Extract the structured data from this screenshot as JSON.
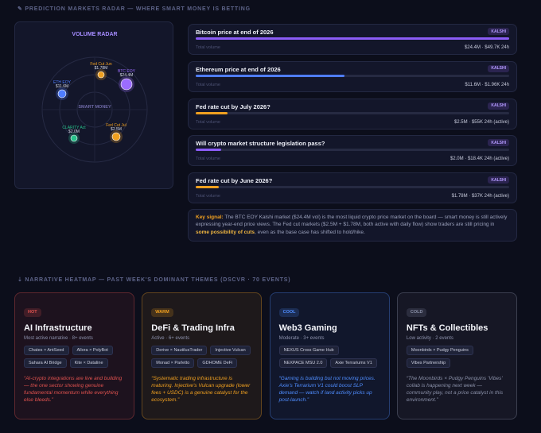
{
  "radar": {
    "title": "PREDICTION MARKETS RADAR — WHERE SMART MONEY IS BETTING",
    "panel_title": "VOLUME RADAR",
    "center": "SMART MONEY",
    "nodes": [
      {
        "label": "Fed Cut Jun",
        "value": "$1.78M",
        "color": "#f0a020"
      },
      {
        "label": "BTC EOY",
        "value": "$24.4M",
        "color": "#9b6cff"
      },
      {
        "label": "ETH EOY",
        "value": "$11.6M",
        "color": "#4f7dff"
      },
      {
        "label": "CLARITY Act",
        "value": "$2.0M",
        "color": "#27c28a"
      },
      {
        "label": "Fed Cut Jul",
        "value": "$2.5M",
        "color": "#f0a020"
      }
    ]
  },
  "markets": [
    {
      "question": "Bitcoin price at end of 2026",
      "source": "KALSHI",
      "volume_label": "Total volume",
      "volume_musd": 24.4,
      "stats": "$24.4M · $49.7K 24h",
      "color": "#8b5cf6"
    },
    {
      "question": "Ethereum price at end of 2026",
      "source": "KALSHI",
      "volume_label": "Total volume",
      "volume_musd": 11.6,
      "stats": "$11.6M · $1.96K 24h",
      "color": "#4f7dff"
    },
    {
      "question": "Fed rate cut by July 2026?",
      "source": "KALSHI",
      "volume_label": "Total volume",
      "volume_musd": 2.5,
      "stats": "$2.5M · $55K 24h (active)",
      "color": "#f0a020"
    },
    {
      "question": "Will crypto market structure legislation pass?",
      "source": "KALSHI",
      "volume_label": "Total volume",
      "volume_musd": 2.0,
      "stats": "$2.0M · $18.4K 24h (active)",
      "color": "#8b5cf6"
    },
    {
      "question": "Fed rate cut by June 2026?",
      "source": "KALSHI",
      "volume_label": "Total volume",
      "volume_musd": 1.78,
      "stats": "$1.78M · $37K 24h (active)",
      "color": "#f0a020"
    }
  ],
  "key_signal": {
    "label": "Key signal:",
    "text_1": " The BTC EOY Kalshi market ($24.4M vol) is the most liquid crypto price market on the board — smart money is still actively expressing year-end price views. The Fed cut markets ($2.5M + $1.78M, both active with daily flow) show traders are still pricing in ",
    "highlight": "some possibility of cuts",
    "text_2": ", even as the base case has shifted to hold/hike."
  },
  "heatmap": {
    "title": "NARRATIVE HEATMAP — PAST WEEK'S DOMINANT THEMES (DSCVR · 70 EVENTS)",
    "cards": [
      {
        "badge": "HOT",
        "title": "AI Infrastructure",
        "subtitle": "Most active narrative · 8+ events",
        "tags": [
          "Chates × AntSeed",
          "Allora × PolyBot",
          "Sahara AI Bridge",
          "Kite × Dataline"
        ],
        "quote": "“AI-crypto integrations are live and building — the one sector showing genuine fundamental momentum while everything else bleeds.”",
        "color": "#e0524f"
      },
      {
        "badge": "WARM",
        "title": "DeFi & Trading Infra",
        "subtitle": "Active · 6+ events",
        "tags": [
          "Derive × NautilusTrader",
          "Injective Vulcan",
          "Monad × Parletto",
          "GDHOME DeFi"
        ],
        "quote": "“Systematic trading infrastructure is maturing. Injective's Vulcan upgrade (lower fees + USDC) is a genuine catalyst for the ecosystem.”",
        "color": "#f0a020"
      },
      {
        "badge": "COOL",
        "title": "Web3 Gaming",
        "subtitle": "Moderate · 3+ events",
        "tags": [
          "NEXUS Cross Game Hub",
          "NEXPACE MSU 2.0",
          "Axie Terrariums V1"
        ],
        "quote": "“Gaming is building but not moving prices. Axie's Terrarium V1 could boost SLP demand — watch if land activity picks up post-launch.”",
        "color": "#4f8dff"
      },
      {
        "badge": "COLD",
        "title": "NFTs & Collectibles",
        "subtitle": "Low activity · 2 events",
        "tags": [
          "Moonbirds × Pudgy Penguins",
          "Vibes Partnership"
        ],
        "quote": "“The Moonbirds × Pudgy Penguins 'Vibes' collab is happening next week — community play, not a price catalyst in this environment.”",
        "color": "#8a90a8"
      }
    ]
  }
}
